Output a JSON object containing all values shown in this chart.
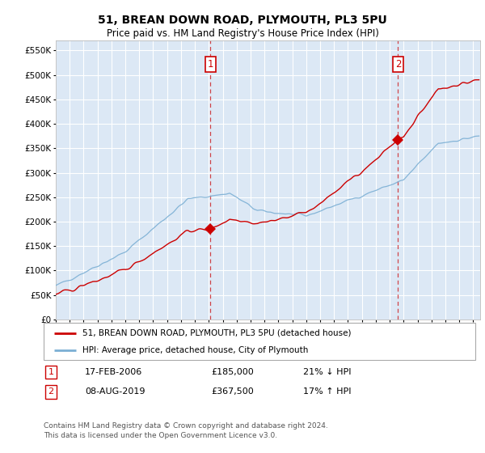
{
  "title": "51, BREAN DOWN ROAD, PLYMOUTH, PL3 5PU",
  "subtitle": "Price paid vs. HM Land Registry's House Price Index (HPI)",
  "ylim": [
    0,
    570000
  ],
  "xlim_start": 1995.0,
  "xlim_end": 2025.5,
  "fig_bg_color": "#ffffff",
  "plot_bg_color": "#dce8f5",
  "grid_color": "#ffffff",
  "hpi_color": "#7bafd4",
  "price_color": "#cc0000",
  "sale1_x": 2006.12,
  "sale1_y": 185000,
  "sale2_x": 2019.6,
  "sale2_y": 367500,
  "legend_label_price": "51, BREAN DOWN ROAD, PLYMOUTH, PL3 5PU (detached house)",
  "legend_label_hpi": "HPI: Average price, detached house, City of Plymouth",
  "footnote": "Contains HM Land Registry data © Crown copyright and database right 2024.\nThis data is licensed under the Open Government Licence v3.0."
}
